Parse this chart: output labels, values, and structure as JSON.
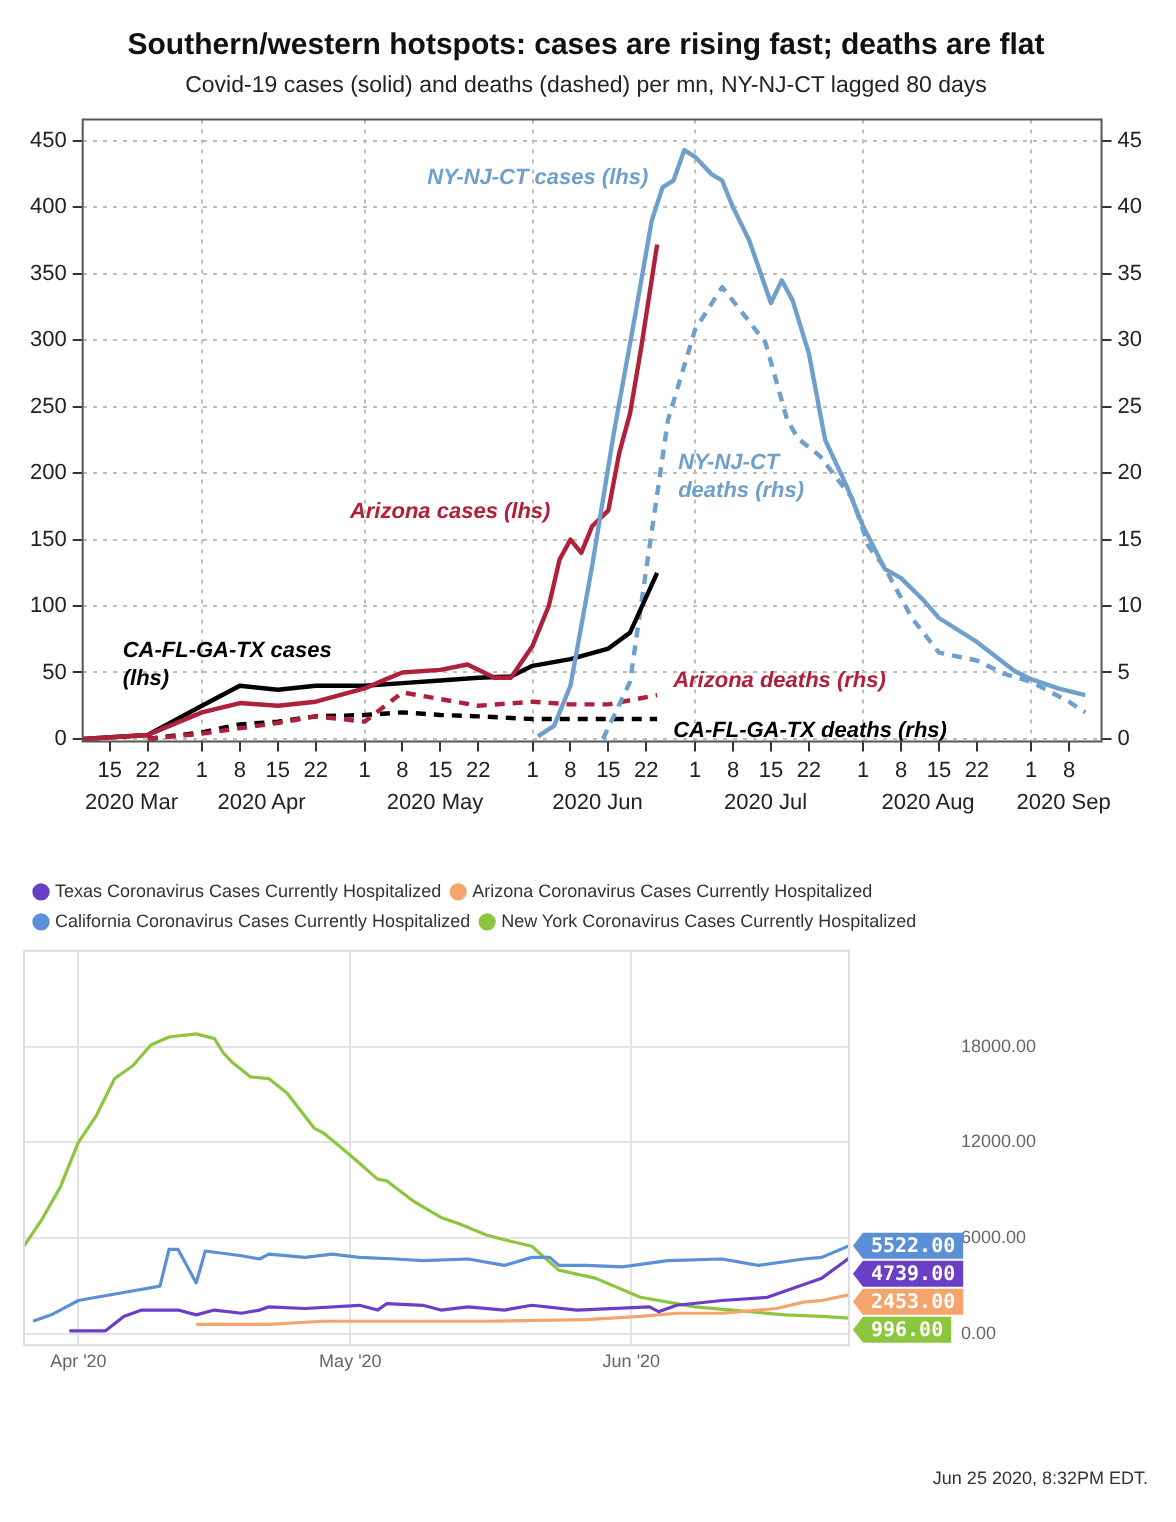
{
  "chart_data": [
    {
      "type": "line",
      "title": "Southern/western hotspots: cases are rising fast; deaths are flat",
      "subtitle": "Covid-19 cases (solid) and deaths (dashed) per mn, NY-NJ-CT lagged 80 days",
      "xlim": [
        "2020-03-10",
        "2020-09-14"
      ],
      "xticks": [
        {
          "value": "2020-03-15",
          "label": "15"
        },
        {
          "value": "2020-03-22",
          "label": "22"
        },
        {
          "value": "2020-04-01",
          "label": "1"
        },
        {
          "value": "2020-04-08",
          "label": "8"
        },
        {
          "value": "2020-04-15",
          "label": "15"
        },
        {
          "value": "2020-04-22",
          "label": "22"
        },
        {
          "value": "2020-05-01",
          "label": "1"
        },
        {
          "value": "2020-05-08",
          "label": "8"
        },
        {
          "value": "2020-05-15",
          "label": "15"
        },
        {
          "value": "2020-05-22",
          "label": "22"
        },
        {
          "value": "2020-06-01",
          "label": "1"
        },
        {
          "value": "2020-06-08",
          "label": "8"
        },
        {
          "value": "2020-06-15",
          "label": "15"
        },
        {
          "value": "2020-06-22",
          "label": "22"
        },
        {
          "value": "2020-07-01",
          "label": "1"
        },
        {
          "value": "2020-07-08",
          "label": "8"
        },
        {
          "value": "2020-07-15",
          "label": "15"
        },
        {
          "value": "2020-07-22",
          "label": "22"
        },
        {
          "value": "2020-08-01",
          "label": "1"
        },
        {
          "value": "2020-08-08",
          "label": "8"
        },
        {
          "value": "2020-08-15",
          "label": "15"
        },
        {
          "value": "2020-08-22",
          "label": "22"
        },
        {
          "value": "2020-09-01",
          "label": "1"
        },
        {
          "value": "2020-09-08",
          "label": "8"
        }
      ],
      "x2lim": [
        "2020-03-10",
        "2020-09-14"
      ],
      "x2ticks": [
        {
          "value": "2020-03-19",
          "label": "2020 Mar"
        },
        {
          "value": "2020-04-12",
          "label": "2020 Apr"
        },
        {
          "value": "2020-05-14",
          "label": "2020 May"
        },
        {
          "value": "2020-06-13",
          "label": "2020 Jun"
        },
        {
          "value": "2020-07-14",
          "label": "2020 Jul"
        },
        {
          "value": "2020-08-13",
          "label": "2020 Aug"
        },
        {
          "value": "2020-09-07",
          "label": "2020 Sep"
        }
      ],
      "ylim": [
        -2,
        466
      ],
      "yticks": [
        0,
        50,
        100,
        150,
        200,
        250,
        300,
        350,
        400,
        450
      ],
      "y2lim": [
        -0.2,
        46.6
      ],
      "y2ticks": [
        0,
        5,
        10,
        15,
        20,
        25,
        30,
        35,
        40,
        45
      ],
      "grid": true,
      "series": [
        {
          "name": "NY-NJ-CT cases (lhs)",
          "color": "#6f9fcb",
          "x": [
            "2020-06-02",
            "2020-06-05",
            "2020-06-08",
            "2020-06-12",
            "2020-06-16",
            "2020-06-20",
            "2020-06-23",
            "2020-06-25",
            "2020-06-27",
            "2020-06-29",
            "2020-07-01",
            "2020-07-04",
            "2020-07-06",
            "2020-07-08",
            "2020-07-11",
            "2020-07-15",
            "2020-07-17",
            "2020-07-19",
            "2020-07-22",
            "2020-07-25",
            "2020-07-29",
            "2020-08-01",
            "2020-08-05",
            "2020-08-08",
            "2020-08-12",
            "2020-08-15",
            "2020-08-22",
            "2020-08-29",
            "2020-09-01",
            "2020-09-06",
            "2020-09-11"
          ],
          "values": [
            2,
            10,
            40,
            130,
            230,
            320,
            390,
            415,
            420,
            443,
            438,
            425,
            420,
            400,
            375,
            328,
            345,
            330,
            290,
            225,
            190,
            160,
            128,
            121,
            105,
            91,
            73,
            51,
            45,
            38,
            33
          ]
        },
        {
          "name": "Arizona cases (lhs)",
          "color": "#b0203a",
          "x": [
            "2020-03-10",
            "2020-03-22",
            "2020-04-01",
            "2020-04-08",
            "2020-04-15",
            "2020-04-22",
            "2020-05-01",
            "2020-05-05",
            "2020-05-08",
            "2020-05-15",
            "2020-05-20",
            "2020-05-25",
            "2020-05-28",
            "2020-06-01",
            "2020-06-04",
            "2020-06-06",
            "2020-06-08",
            "2020-06-10",
            "2020-06-12",
            "2020-06-15",
            "2020-06-17",
            "2020-06-19",
            "2020-06-21",
            "2020-06-24"
          ],
          "values": [
            0,
            3,
            20,
            27,
            25,
            28,
            38,
            45,
            50,
            52,
            56,
            46,
            46,
            70,
            100,
            135,
            150,
            140,
            160,
            172,
            215,
            245,
            293,
            372
          ]
        },
        {
          "name": "CA-FL-GA-TX cases (lhs)",
          "color": "#000000",
          "x": [
            "2020-03-10",
            "2020-03-22",
            "2020-04-01",
            "2020-04-08",
            "2020-04-15",
            "2020-04-22",
            "2020-05-01",
            "2020-05-08",
            "2020-05-15",
            "2020-05-22",
            "2020-05-28",
            "2020-06-01",
            "2020-06-08",
            "2020-06-15",
            "2020-06-19",
            "2020-06-24"
          ],
          "values": [
            0,
            3,
            25,
            40,
            37,
            40,
            40,
            42,
            44,
            46,
            47,
            55,
            60,
            68,
            80,
            125
          ]
        },
        {
          "name": "NY-NJ-CT deaths (rhs)",
          "color": "#6f9fcb",
          "axis": "y2",
          "line_style": "dashed",
          "x": [
            "2020-06-14",
            "2020-06-19",
            "2020-06-22",
            "2020-06-26",
            "2020-07-01",
            "2020-07-06",
            "2020-07-11",
            "2020-07-14",
            "2020-07-18",
            "2020-07-20",
            "2020-07-24",
            "2020-07-30",
            "2020-08-02",
            "2020-08-05",
            "2020-08-10",
            "2020-08-15",
            "2020-08-22",
            "2020-08-27",
            "2020-09-01",
            "2020-09-08",
            "2020-09-11"
          ],
          "values": [
            0,
            4.3,
            12.8,
            24,
            30.8,
            34,
            31.4,
            29.8,
            24,
            22.6,
            21.3,
            18.1,
            14.5,
            12.9,
            9.1,
            6.5,
            5.9,
            4.9,
            4.3,
            2.8,
            2
          ]
        },
        {
          "name": "Arizona deaths (rhs)",
          "color": "#b0203a",
          "axis": "y2",
          "line_style": "dashed",
          "x": [
            "2020-03-22",
            "2020-04-01",
            "2020-04-15",
            "2020-04-22",
            "2020-05-01",
            "2020-05-08",
            "2020-05-15",
            "2020-05-22",
            "2020-06-01",
            "2020-06-08",
            "2020-06-15",
            "2020-06-24"
          ],
          "values": [
            0,
            0.4,
            1.2,
            1.7,
            1.3,
            3.5,
            3,
            2.5,
            2.8,
            2.6,
            2.6,
            3.3
          ]
        },
        {
          "name": "CA-FL-GA-TX deaths (rhs)",
          "color": "#000000",
          "axis": "y2",
          "line_style": "dashed",
          "x": [
            "2020-03-22",
            "2020-04-01",
            "2020-04-08",
            "2020-04-15",
            "2020-04-22",
            "2020-05-01",
            "2020-05-08",
            "2020-05-15",
            "2020-05-22",
            "2020-06-01",
            "2020-06-08",
            "2020-06-24"
          ],
          "values": [
            0,
            0.5,
            1.1,
            1.3,
            1.7,
            1.8,
            2,
            1.8,
            1.7,
            1.5,
            1.5,
            1.5
          ]
        }
      ]
    },
    {
      "type": "line",
      "legend": "top left",
      "grid": true,
      "xlim": [
        "2020-03-26",
        "2020-06-25"
      ],
      "xticks": [
        {
          "value": "2020-04-01",
          "label": "Apr '20"
        },
        {
          "value": "2020-05-01",
          "label": "May '20"
        },
        {
          "value": "2020-06-01",
          "label": "Jun '20"
        }
      ],
      "ylim": [
        -700,
        24000
      ],
      "yticks": [
        {
          "value": 0,
          "label": "0.00"
        },
        {
          "value": 6000,
          "label": "6000.00"
        },
        {
          "value": 12000,
          "label": "12000.00"
        },
        {
          "value": 18000,
          "label": "18000.00"
        }
      ],
      "annotations": [
        "Jun 25 2020, 8:32PM EDT."
      ],
      "series": [
        {
          "name": "Texas Coronavirus Cases Currently Hospitalized",
          "color": "#6a3fc8",
          "x": [
            "2020-03-31",
            "2020-04-04",
            "2020-04-06",
            "2020-04-08",
            "2020-04-12",
            "2020-04-14",
            "2020-04-16",
            "2020-04-19",
            "2020-04-21",
            "2020-04-22",
            "2020-04-26",
            "2020-05-02",
            "2020-05-04",
            "2020-05-05",
            "2020-05-09",
            "2020-05-11",
            "2020-05-14",
            "2020-05-18",
            "2020-05-21",
            "2020-05-26",
            "2020-06-03",
            "2020-06-04",
            "2020-06-06",
            "2020-06-11",
            "2020-06-16",
            "2020-06-19",
            "2020-06-22",
            "2020-06-25"
          ],
          "values": [
            200,
            200,
            1100,
            1500,
            1500,
            1200,
            1500,
            1300,
            1500,
            1700,
            1600,
            1800,
            1500,
            1900,
            1800,
            1500,
            1700,
            1500,
            1800,
            1500,
            1700,
            1400,
            1800,
            2100,
            2300,
            2900,
            3500,
            4739
          ],
          "value_labels": [
            null,
            null,
            null,
            null,
            null,
            null,
            null,
            null,
            null,
            null,
            null,
            null,
            null,
            null,
            null,
            null,
            null,
            null,
            null,
            null,
            null,
            null,
            null,
            null,
            null,
            null,
            null,
            "4739.00"
          ]
        },
        {
          "name": "Arizona Coronavirus Cases Currently Hospitalized",
          "color": "#f5a46c",
          "x": [
            "2020-04-14",
            "2020-04-22",
            "2020-04-28",
            "2020-05-16",
            "2020-05-27",
            "2020-06-02",
            "2020-06-06",
            "2020-06-11",
            "2020-06-17",
            "2020-06-20",
            "2020-06-22",
            "2020-06-25"
          ],
          "values": [
            600,
            600,
            800,
            800,
            900,
            1100,
            1300,
            1300,
            1600,
            2000,
            2100,
            2453
          ],
          "value_labels": [
            null,
            null,
            null,
            null,
            null,
            null,
            null,
            null,
            null,
            null,
            null,
            "2453.00"
          ]
        },
        {
          "name": "California Coronavirus Cases Currently Hospitalized",
          "color": "#5b8fd8",
          "x": [
            "2020-03-27",
            "2020-03-29",
            "2020-03-30",
            "2020-04-01",
            "2020-04-03",
            "2020-04-06",
            "2020-04-10",
            "2020-04-11",
            "2020-04-12",
            "2020-04-14",
            "2020-04-15",
            "2020-04-19",
            "2020-04-21",
            "2020-04-22",
            "2020-04-26",
            "2020-04-29",
            "2020-05-02",
            "2020-05-06",
            "2020-05-09",
            "2020-05-14",
            "2020-05-18",
            "2020-05-21",
            "2020-05-23",
            "2020-05-24",
            "2020-05-27",
            "2020-05-31",
            "2020-06-05",
            "2020-06-11",
            "2020-06-15",
            "2020-06-20",
            "2020-06-22",
            "2020-06-25"
          ],
          "values": [
            800,
            1200,
            1500,
            2100,
            2300,
            2600,
            3000,
            5300,
            5300,
            3200,
            5200,
            4900,
            4700,
            5000,
            4800,
            5000,
            4800,
            4700,
            4600,
            4700,
            4300,
            4800,
            4800,
            4300,
            4300,
            4200,
            4600,
            4700,
            4300,
            4700,
            4800,
            5522
          ],
          "value_labels": [
            null,
            null,
            null,
            null,
            null,
            null,
            null,
            null,
            null,
            null,
            null,
            null,
            null,
            null,
            null,
            null,
            null,
            null,
            null,
            null,
            null,
            null,
            null,
            null,
            null,
            null,
            null,
            null,
            null,
            null,
            null,
            "5522.00"
          ]
        },
        {
          "name": "New York Coronavirus Cases Currently Hospitalized",
          "color": "#8cc63f",
          "x": [
            "2020-03-26",
            "2020-03-28",
            "2020-03-30",
            "2020-04-01",
            "2020-04-03",
            "2020-04-05",
            "2020-04-07",
            "2020-04-09",
            "2020-04-11",
            "2020-04-14",
            "2020-04-16",
            "2020-04-17",
            "2020-04-18",
            "2020-04-20",
            "2020-04-22",
            "2020-04-24",
            "2020-04-27",
            "2020-04-28",
            "2020-05-01",
            "2020-05-04",
            "2020-05-05",
            "2020-05-08",
            "2020-05-11",
            "2020-05-13",
            "2020-05-16",
            "2020-05-18",
            "2020-05-21",
            "2020-05-24",
            "2020-05-28",
            "2020-06-02",
            "2020-06-08",
            "2020-06-14",
            "2020-06-18",
            "2020-06-22",
            "2020-06-25"
          ],
          "values": [
            5500,
            7200,
            9200,
            12000,
            13700,
            16000,
            16800,
            18100,
            18600,
            18800,
            18500,
            17600,
            17000,
            16100,
            16000,
            15100,
            12900,
            12600,
            11200,
            9700,
            9600,
            8300,
            7300,
            6900,
            6200,
            5900,
            5500,
            4000,
            3500,
            2300,
            1700,
            1400,
            1200,
            1100,
            996
          ],
          "value_labels": [
            null,
            null,
            null,
            null,
            null,
            null,
            null,
            null,
            null,
            null,
            null,
            null,
            null,
            null,
            null,
            null,
            null,
            null,
            null,
            null,
            null,
            null,
            null,
            null,
            null,
            null,
            null,
            null,
            null,
            null,
            null,
            null,
            null,
            null,
            "996.00"
          ]
        }
      ]
    }
  ]
}
